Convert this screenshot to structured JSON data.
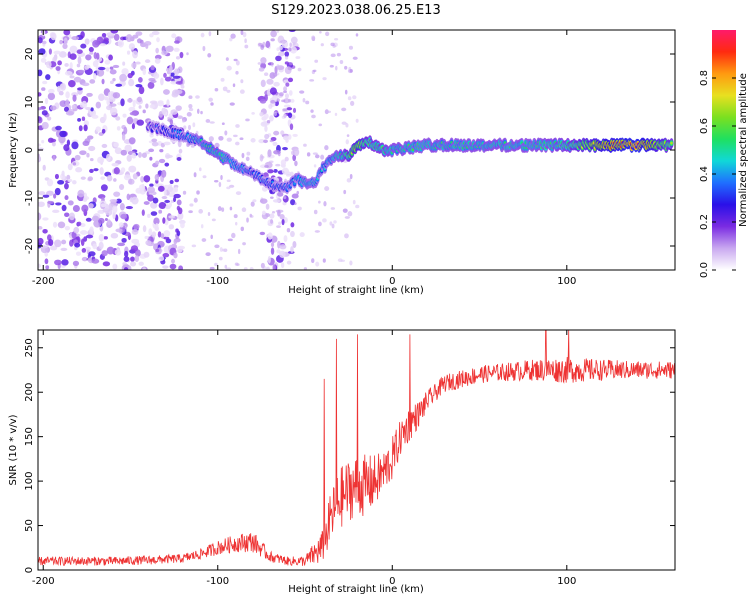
{
  "title": "S129.2023.038.06.25.E13",
  "colorbar": {
    "label": "Normalized spectral amplitude",
    "ticks": [
      "0.0",
      "0.2",
      "0.4",
      "0.6",
      "0.8"
    ],
    "tick_values": [
      0.0,
      0.2,
      0.4,
      0.6,
      0.8
    ],
    "range": [
      0,
      1
    ],
    "colormap": [
      "#ffffff",
      "#c9a8f0",
      "#7a2be2",
      "#2a10e8",
      "#1f6fff",
      "#10d8d8",
      "#1fe060",
      "#7be020",
      "#e8e020",
      "#ff9a10",
      "#ff2a10",
      "#ff1a6a"
    ]
  },
  "chart_data": [
    {
      "type": "heatmap",
      "name": "spectrogram",
      "xlabel": "Height of straight line (km)",
      "ylabel": "Frequency (Hz)",
      "xlim": [
        -203,
        162
      ],
      "ylim": [
        -25,
        25
      ],
      "x_ticks": [
        -200,
        -100,
        0,
        100
      ],
      "x_tick_labels": [
        "-200",
        "-100",
        "0",
        "100"
      ],
      "y_ticks": [
        -20,
        -10,
        0,
        10,
        20
      ],
      "y_tick_labels": [
        "-20",
        "-10",
        "0",
        "10",
        "20"
      ],
      "ridge": {
        "x": [
          -140,
          -130,
          -120,
          -110,
          -100,
          -90,
          -80,
          -70,
          -60,
          -55,
          -50,
          -45,
          -40,
          -35,
          -30,
          -25,
          -20,
          -15,
          -10,
          -5,
          0,
          20,
          40,
          60,
          80,
          100,
          120,
          140,
          160
        ],
        "freq": [
          5,
          4,
          3,
          2,
          -1,
          -3,
          -5,
          -7,
          -8,
          -6,
          -7,
          -7,
          -4,
          -2,
          -1,
          -1,
          1,
          2,
          1,
          0,
          0,
          1,
          1,
          1,
          1,
          1,
          1,
          1,
          1
        ],
        "amplitude": [
          0.2,
          0.25,
          0.3,
          0.4,
          0.45,
          0.35,
          0.3,
          0.3,
          0.3,
          0.35,
          0.4,
          0.4,
          0.35,
          0.4,
          0.45,
          0.55,
          0.65,
          0.55,
          0.5,
          0.5,
          0.45,
          0.45,
          0.45,
          0.45,
          0.45,
          0.5,
          0.75,
          0.85,
          0.55
        ]
      },
      "noise_regions_x": [
        [
          -203,
          -120
        ],
        [
          -75,
          -55
        ]
      ]
    },
    {
      "type": "line",
      "name": "snr",
      "xlabel": "Height of straight line (km)",
      "ylabel": "SNR (10 * v/v)",
      "xlim": [
        -203,
        162
      ],
      "ylim": [
        0,
        270
      ],
      "x_ticks": [
        -200,
        -100,
        0,
        100
      ],
      "x_tick_labels": [
        "-200",
        "-100",
        "0",
        "100"
      ],
      "y_ticks": [
        0,
        50,
        100,
        150,
        200,
        250
      ],
      "y_tick_labels": [
        "0",
        "50",
        "100",
        "150",
        "200",
        "250"
      ],
      "color": "#ee3333",
      "x": [
        -203,
        -180,
        -160,
        -140,
        -120,
        -110,
        -100,
        -90,
        -80,
        -70,
        -60,
        -50,
        -40,
        -35,
        -30,
        -25,
        -20,
        -15,
        -10,
        -5,
        0,
        5,
        10,
        15,
        20,
        25,
        30,
        40,
        50,
        60,
        80,
        100,
        120,
        140,
        162
      ],
      "y": [
        10,
        10,
        10,
        11,
        13,
        18,
        25,
        30,
        32,
        15,
        10,
        10,
        25,
        60,
        80,
        90,
        95,
        95,
        100,
        110,
        125,
        150,
        165,
        175,
        190,
        200,
        210,
        215,
        220,
        222,
        225,
        225,
        225,
        225,
        225
      ],
      "noise_amplitude": [
        5,
        5,
        5,
        5,
        5,
        6,
        8,
        10,
        12,
        6,
        5,
        6,
        20,
        30,
        35,
        35,
        35,
        35,
        30,
        25,
        25,
        20,
        20,
        15,
        12,
        10,
        10,
        10,
        10,
        10,
        12,
        15,
        12,
        10,
        10
      ],
      "spikes": [
        {
          "x": -39,
          "y": 215
        },
        {
          "x": -32,
          "y": 260
        },
        {
          "x": -20,
          "y": 265
        },
        {
          "x": 10,
          "y": 265
        },
        {
          "x": 88,
          "y": 270
        },
        {
          "x": 101,
          "y": 270
        }
      ]
    }
  ]
}
